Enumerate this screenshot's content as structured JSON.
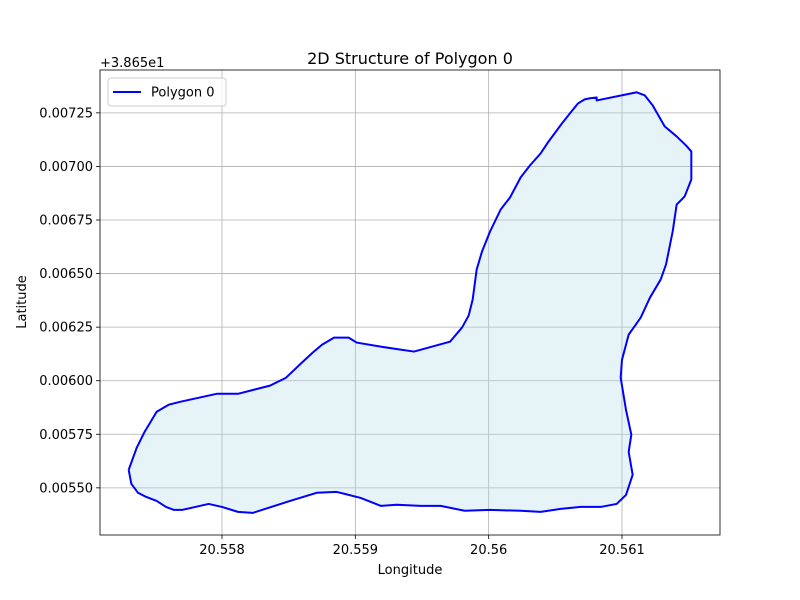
{
  "chart_data": {
    "type": "line",
    "title": "2D Structure of Polygon 0",
    "x_label": "Longitude",
    "y_label": "Latitude",
    "y_offset_label": "+3.865e1",
    "x": [
      20.5573,
      20.55732,
      20.55737,
      20.55743,
      20.55751,
      20.55758,
      20.55764,
      20.5577,
      20.5579,
      20.558,
      20.55812,
      20.55823,
      20.55851,
      20.55871,
      20.55886,
      20.55892,
      20.55904,
      20.55919,
      20.55931,
      20.55949,
      20.55964,
      20.55982,
      20.56001,
      20.56024,
      20.56039,
      20.56054,
      20.56069,
      20.56084,
      20.56096,
      20.56103,
      20.56108,
      20.56105,
      20.56107,
      20.56103,
      20.56099,
      20.561,
      20.56105,
      20.56114,
      20.56121,
      20.56129,
      20.56133,
      20.56138,
      20.56141,
      20.56147,
      20.56152,
      20.56152,
      20.56148,
      20.56141,
      20.56132,
      20.56123,
      20.56117,
      20.56111,
      20.56081,
      20.56081,
      20.56076,
      20.56072,
      20.56067,
      20.56061,
      20.56055,
      20.56045,
      20.56039,
      20.56031,
      20.56024,
      20.56016,
      20.56009,
      20.56001,
      20.55995,
      20.55991,
      20.55988,
      20.55985,
      20.5598,
      20.55971,
      20.55944,
      20.55934,
      20.55919,
      20.55901,
      20.55895,
      20.55884,
      20.55875,
      20.55868,
      20.55859,
      20.55848,
      20.55836,
      20.55812,
      20.55808,
      20.55796,
      20.55769,
      20.5576,
      20.55751,
      20.55742,
      20.55736,
      20.5573
    ],
    "series": [
      {
        "name": "Polygon 0",
        "color": "#0000ff",
        "fill": "#add8e6",
        "values": [
          0.005584,
          0.005519,
          0.005477,
          0.005458,
          0.005439,
          0.005411,
          0.005397,
          0.005397,
          0.005425,
          0.005411,
          0.005388,
          0.005383,
          0.005439,
          0.005477,
          0.005481,
          0.005472,
          0.005453,
          0.005416,
          0.005421,
          0.005416,
          0.005416,
          0.005393,
          0.005397,
          0.005393,
          0.005388,
          0.005402,
          0.005411,
          0.005411,
          0.005425,
          0.005467,
          0.005561,
          0.005668,
          0.005748,
          0.005864,
          0.006014,
          0.006098,
          0.006215,
          0.006294,
          0.006388,
          0.006472,
          0.006542,
          0.006696,
          0.006822,
          0.00686,
          0.006939,
          0.00707,
          0.007098,
          0.00714,
          0.007187,
          0.007285,
          0.007332,
          0.007346,
          0.007308,
          0.007322,
          0.007318,
          0.007313,
          0.007294,
          0.007248,
          0.007201,
          0.007117,
          0.007061,
          0.007005,
          0.006949,
          0.006855,
          0.006799,
          0.006696,
          0.006603,
          0.006519,
          0.006379,
          0.006304,
          0.006248,
          0.006182,
          0.006136,
          0.006145,
          0.006159,
          0.006178,
          0.006201,
          0.006201,
          0.006168,
          0.006131,
          0.006079,
          0.006014,
          0.005977,
          0.005939,
          0.005939,
          0.005939,
          0.005902,
          0.005888,
          0.005855,
          0.005762,
          0.005687,
          0.005584
        ]
      }
    ],
    "xlim": [
      20.557085,
      20.561735
    ],
    "xticks": [
      20.558,
      20.559,
      20.56,
      20.561
    ],
    "ylim": [
      0.00528,
      0.00745
    ],
    "yticks": [
      {
        "value": 0.0055,
        "label": "0.00550"
      },
      0.00575,
      {
        "value": 0.006,
        "label": "0.00600"
      },
      0.00625,
      {
        "value": 0.0065,
        "label": "0.00650"
      },
      0.00675,
      {
        "value": 0.007,
        "label": "0.00700"
      },
      0.00725
    ],
    "grid": true,
    "legend": "upper left"
  }
}
